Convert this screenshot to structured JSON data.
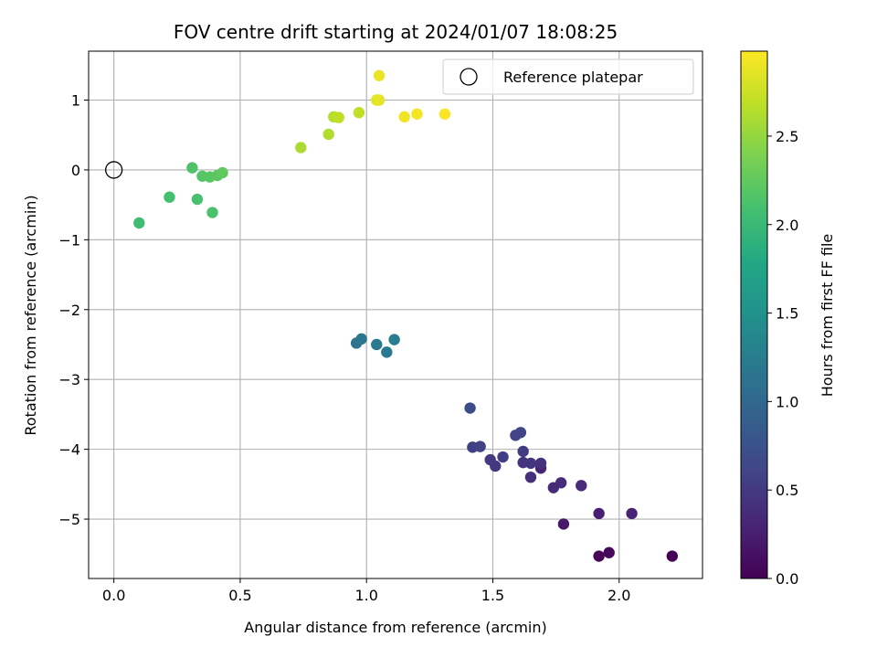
{
  "chart_data": {
    "type": "scatter",
    "title": "FOV centre drift starting at 2024/01/07 18:08:25",
    "xlabel": "Angular distance from reference (arcmin)",
    "ylabel": "Rotation from reference (arcmin)",
    "xlim": [
      -0.1,
      2.33
    ],
    "ylim": [
      -5.85,
      1.7
    ],
    "x_ticks": [
      0.0,
      0.5,
      1.0,
      1.5,
      2.0
    ],
    "x_tick_labels": [
      "0.0",
      "0.5",
      "1.0",
      "1.5",
      "2.0"
    ],
    "y_ticks": [
      1,
      0,
      -1,
      -2,
      -3,
      -4,
      -5
    ],
    "y_tick_labels": [
      "1",
      "0",
      "−1",
      "−2",
      "−3",
      "−4",
      "−5"
    ],
    "grid": true,
    "colorbar": {
      "label": "Hours from first FF file",
      "range": [
        0.0,
        2.98
      ],
      "ticks": [
        0.0,
        0.5,
        1.0,
        1.5,
        2.0,
        2.5
      ],
      "tick_labels": [
        "0.0",
        "0.5",
        "1.0",
        "1.5",
        "2.0",
        "2.5"
      ],
      "colormap": "viridis"
    },
    "legend": {
      "placement": "top-right",
      "entries": [
        "Reference platepar"
      ]
    },
    "reference_point": {
      "x": 0.0,
      "y": 0.0,
      "label": "Reference platepar"
    },
    "points": [
      {
        "x": 2.21,
        "y": -5.53,
        "hours": 0.02
      },
      {
        "x": 1.92,
        "y": -5.53,
        "hours": 0.04
      },
      {
        "x": 1.96,
        "y": -5.48,
        "hours": 0.06
      },
      {
        "x": 1.78,
        "y": -5.07,
        "hours": 0.2
      },
      {
        "x": 1.92,
        "y": -4.92,
        "hours": 0.25
      },
      {
        "x": 2.05,
        "y": -4.92,
        "hours": 0.28
      },
      {
        "x": 1.69,
        "y": -4.27,
        "hours": 0.3
      },
      {
        "x": 1.85,
        "y": -4.52,
        "hours": 0.35
      },
      {
        "x": 1.74,
        "y": -4.55,
        "hours": 0.36
      },
      {
        "x": 1.77,
        "y": -4.48,
        "hours": 0.38
      },
      {
        "x": 1.65,
        "y": -4.4,
        "hours": 0.4
      },
      {
        "x": 1.69,
        "y": -4.2,
        "hours": 0.42
      },
      {
        "x": 1.62,
        "y": -4.19,
        "hours": 0.45
      },
      {
        "x": 1.65,
        "y": -4.2,
        "hours": 0.46
      },
      {
        "x": 1.51,
        "y": -4.24,
        "hours": 0.48
      },
      {
        "x": 1.49,
        "y": -4.15,
        "hours": 0.5
      },
      {
        "x": 1.62,
        "y": -4.03,
        "hours": 0.52
      },
      {
        "x": 1.54,
        "y": -4.11,
        "hours": 0.54
      },
      {
        "x": 1.42,
        "y": -3.97,
        "hours": 0.56
      },
      {
        "x": 1.45,
        "y": -3.96,
        "hours": 0.58
      },
      {
        "x": 1.59,
        "y": -3.8,
        "hours": 0.6
      },
      {
        "x": 1.61,
        "y": -3.76,
        "hours": 0.62
      },
      {
        "x": 1.41,
        "y": -3.41,
        "hours": 0.7
      },
      {
        "x": 0.96,
        "y": -2.48,
        "hours": 1.15
      },
      {
        "x": 0.98,
        "y": -2.42,
        "hours": 1.18
      },
      {
        "x": 1.04,
        "y": -2.5,
        "hours": 1.2
      },
      {
        "x": 1.08,
        "y": -2.61,
        "hours": 1.22
      },
      {
        "x": 1.11,
        "y": -2.43,
        "hours": 1.25
      },
      {
        "x": 0.1,
        "y": -0.76,
        "hours": 2.05
      },
      {
        "x": 0.22,
        "y": -0.39,
        "hours": 2.08
      },
      {
        "x": 0.33,
        "y": -0.42,
        "hours": 2.1
      },
      {
        "x": 0.39,
        "y": -0.61,
        "hours": 2.12
      },
      {
        "x": 0.31,
        "y": 0.03,
        "hours": 2.15
      },
      {
        "x": 0.35,
        "y": -0.09,
        "hours": 2.18
      },
      {
        "x": 0.38,
        "y": -0.1,
        "hours": 2.2
      },
      {
        "x": 0.41,
        "y": -0.08,
        "hours": 2.22
      },
      {
        "x": 0.43,
        "y": -0.04,
        "hours": 2.25
      },
      {
        "x": 0.74,
        "y": 0.32,
        "hours": 2.6
      },
      {
        "x": 0.85,
        "y": 0.51,
        "hours": 2.63
      },
      {
        "x": 0.87,
        "y": 0.76,
        "hours": 2.66
      },
      {
        "x": 0.89,
        "y": 0.75,
        "hours": 2.68
      },
      {
        "x": 0.97,
        "y": 0.82,
        "hours": 2.7
      },
      {
        "x": 1.04,
        "y": 1.0,
        "hours": 2.85
      },
      {
        "x": 1.05,
        "y": 1.0,
        "hours": 2.87
      },
      {
        "x": 1.05,
        "y": 1.35,
        "hours": 2.9
      },
      {
        "x": 1.15,
        "y": 0.76,
        "hours": 2.92
      },
      {
        "x": 1.2,
        "y": 0.8,
        "hours": 2.94
      },
      {
        "x": 1.31,
        "y": 0.8,
        "hours": 2.96
      }
    ]
  }
}
